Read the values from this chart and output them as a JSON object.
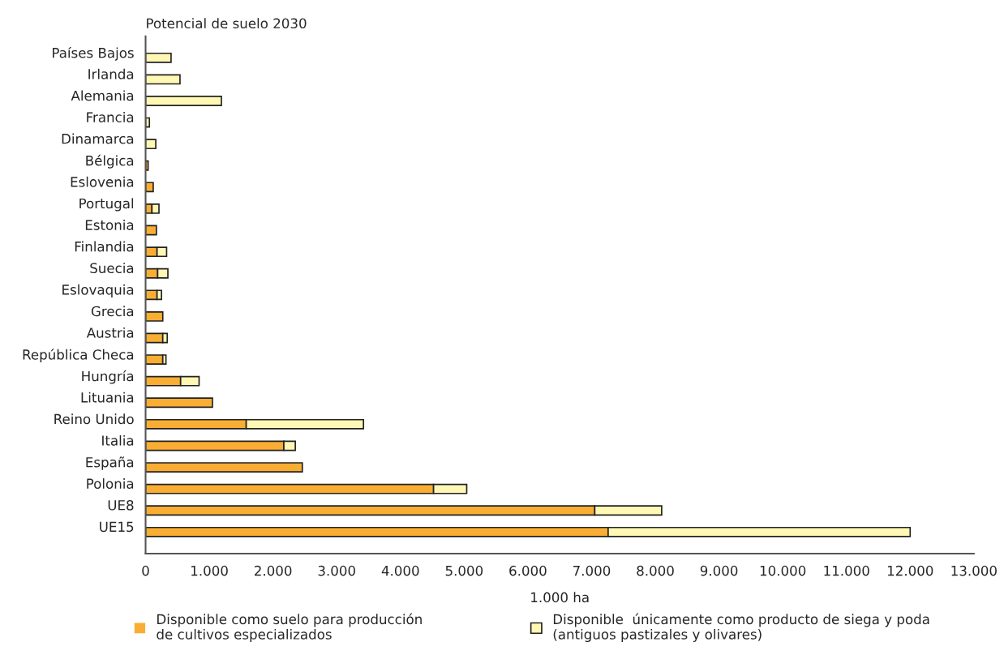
{
  "chart_data": {
    "type": "bar",
    "orientation": "horizontal",
    "stacked": true,
    "title": "Potencial de suelo 2030",
    "xlabel": "1.000 ha",
    "categories": [
      "Países Bajos",
      "Irlanda",
      "Alemania",
      "Francia",
      "Dinamarca",
      "Bélgica",
      "Eslovenia",
      "Portugal",
      "Estonia",
      "Finlandia",
      "Suecia",
      "Eslovaquia",
      "Grecia",
      "Austria",
      "República Checa",
      "Hungría",
      "Lituania",
      "Reino Unido",
      "Italia",
      "España",
      "Polonia",
      "UE8",
      "UE15"
    ],
    "series": [
      {
        "name": "Disponible como suelo para producción\nde cultivos especializados",
        "color": "#f9ae33",
        "values": [
          0,
          0,
          0,
          0,
          0,
          40,
          120,
          100,
          170,
          180,
          190,
          180,
          270,
          270,
          270,
          550,
          1050,
          1580,
          2170,
          2460,
          4520,
          7050,
          7260
        ]
      },
      {
        "name": "Disponible  únicamente como producto de siega y poda\n(antiguos pastizales y olivares)",
        "color": "#fff8b5",
        "values": [
          400,
          540,
          1190,
          60,
          160,
          0,
          0,
          110,
          0,
          150,
          160,
          70,
          0,
          70,
          50,
          290,
          0,
          1840,
          180,
          0,
          520,
          1050,
          4740
        ]
      }
    ],
    "xlim": [
      0,
      13000
    ],
    "xticks": [
      0,
      {
        "value": 1000,
        "label": "1.000"
      },
      {
        "value": 2000,
        "label": "2.000"
      },
      {
        "value": 3000,
        "label": "3.000"
      },
      {
        "value": 4000,
        "label": "4.000"
      },
      {
        "value": 5000,
        "label": "5.000"
      },
      {
        "value": 6000,
        "label": "6.000"
      },
      {
        "value": 7000,
        "label": "7.000"
      },
      {
        "value": 8000,
        "label": "8.000"
      },
      {
        "value": 9000,
        "label": "9.000"
      },
      {
        "value": 10000,
        "label": "10.000"
      },
      {
        "value": 11000,
        "label": "11.000"
      },
      {
        "value": 12000,
        "label": "12.000"
      },
      {
        "value": 13000,
        "label": "13.000"
      }
    ],
    "grid": false,
    "legend": "bottom"
  }
}
